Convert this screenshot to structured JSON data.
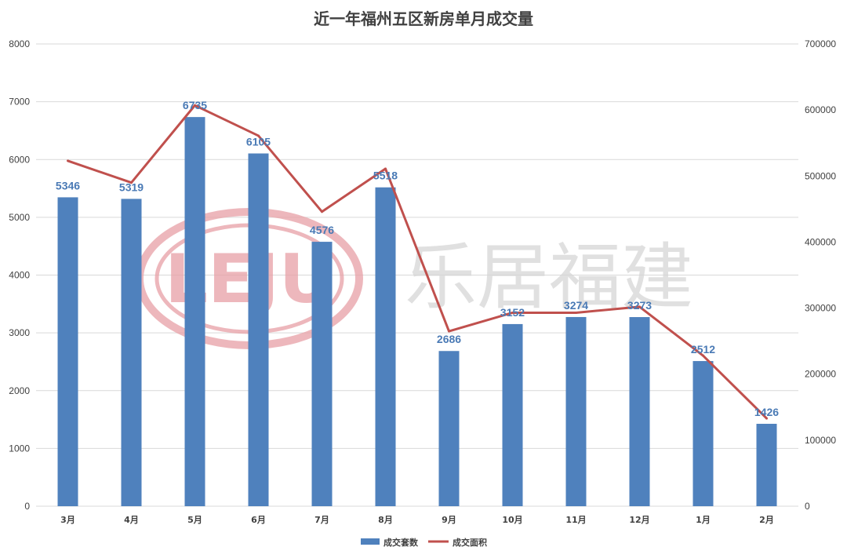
{
  "chart_data": {
    "type": "bar",
    "title": "近一年福州五区新房单月成交量",
    "categories": [
      "3月",
      "4月",
      "5月",
      "6月",
      "7月",
      "8月",
      "9月",
      "10月",
      "11月",
      "12月",
      "1月",
      "2月"
    ],
    "series": [
      {
        "name": "成交套数",
        "type": "bar",
        "axis": "left",
        "color": "#4f81bd",
        "values": [
          5346,
          5319,
          6735,
          6105,
          4576,
          5518,
          2686,
          3152,
          3274,
          3273,
          2512,
          1426
        ]
      },
      {
        "name": "成交面积",
        "type": "line",
        "axis": "right",
        "color": "#c0504d",
        "values": [
          523000,
          490000,
          607000,
          561000,
          446000,
          511000,
          265000,
          293000,
          293000,
          302000,
          228000,
          133000
        ]
      }
    ],
    "y_left": {
      "min": 0,
      "max": 8000,
      "ticks": [
        "0",
        "1000",
        "2000",
        "3000",
        "4000",
        "5000",
        "6000",
        "7000",
        "8000"
      ]
    },
    "y_right": {
      "min": 0,
      "max": 700000,
      "ticks": [
        "0",
        "100000",
        "200000",
        "300000",
        "400000",
        "500000",
        "600000",
        "700000"
      ]
    },
    "grid": true,
    "legend_position": "bottom",
    "data_labels": [
      "5346",
      "5319",
      "6735",
      "6105",
      "4576",
      "5518",
      "2686",
      "3152",
      "3274",
      "3273",
      "2512",
      "1426"
    ]
  },
  "watermark": {
    "logo_text": "LEJU",
    "brand_text": "乐居福建",
    "logo_color": "#e8a0a6"
  }
}
